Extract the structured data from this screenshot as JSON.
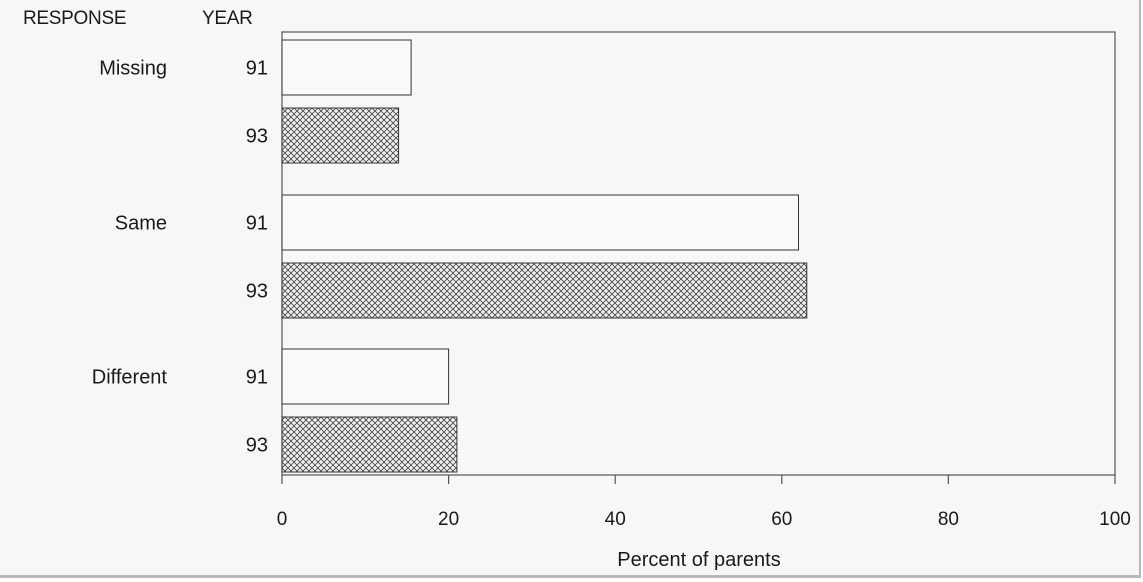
{
  "chart_data": {
    "type": "bar",
    "orientation": "horizontal",
    "column_headers": {
      "response": "RESPONSE",
      "year": "YEAR"
    },
    "categories": [
      "Missing",
      "Same",
      "Different"
    ],
    "years": [
      "91",
      "93"
    ],
    "series": [
      {
        "year": "91",
        "pattern": "open",
        "values": [
          15.5,
          62,
          20
        ]
      },
      {
        "year": "93",
        "pattern": "crosshatch",
        "values": [
          14,
          63,
          21
        ]
      }
    ],
    "xlabel": "Percent of parents",
    "xlim": [
      0,
      100
    ],
    "xticks": [
      "0",
      "20",
      "40",
      "60",
      "80",
      "100"
    ],
    "grid": false,
    "legend": "none",
    "colors": {
      "bar_fill_open": "#f9f9f9",
      "bar_stroke": "#333333",
      "hatch": "#4a4a4a",
      "background": "#f7f7f7"
    }
  }
}
